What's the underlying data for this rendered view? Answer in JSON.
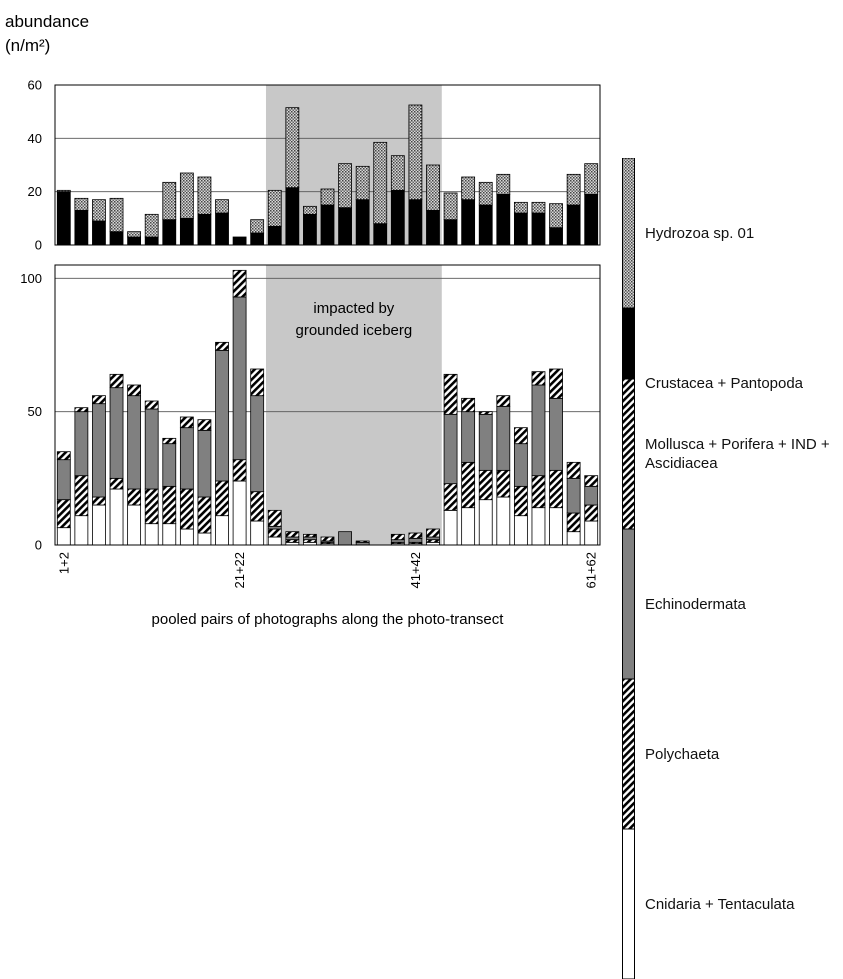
{
  "chart_data": [
    {
      "type": "bar",
      "stacked": true,
      "ylabel_lines": [
        "abundance",
        "(n/m²)"
      ],
      "ylim": [
        0,
        60
      ],
      "yticks": [
        0,
        20,
        40,
        60
      ],
      "grid": true,
      "shaded_range": [
        12,
        21
      ],
      "series": [
        {
          "name": "Crustacea + Pantopoda",
          "color": "#000000",
          "pattern": "solid",
          "values": [
            20,
            13,
            9,
            5,
            3,
            3,
            9.5,
            10,
            11.5,
            12,
            3,
            4.5,
            7,
            21.5,
            11.5,
            15,
            14,
            17,
            8,
            20.5,
            17,
            13,
            9.5,
            17,
            15,
            19,
            12,
            12,
            6.5,
            15,
            19
          ]
        },
        {
          "name": "Hydrozoa sp. 01",
          "color": "#777777",
          "pattern": "dots",
          "values": [
            0.5,
            4.5,
            8,
            12.5,
            2,
            8.5,
            14,
            17,
            14,
            5,
            0,
            5,
            13.5,
            30,
            3,
            6,
            16.5,
            12.5,
            30.5,
            13,
            35.5,
            17,
            10,
            8.5,
            8.5,
            7.5,
            4,
            4,
            9,
            11.5,
            11.5
          ]
        }
      ]
    },
    {
      "type": "bar",
      "stacked": true,
      "ylim": [
        0,
        105
      ],
      "yticks": [
        0,
        50,
        100
      ],
      "grid": true,
      "shaded_range": [
        12,
        21
      ],
      "annotation_lines": [
        "impacted by",
        "grounded iceberg"
      ],
      "xlabel": "pooled pairs of photographs along the photo-transect",
      "categories": [
        "1+2",
        null,
        null,
        null,
        null,
        null,
        null,
        null,
        null,
        null,
        "21+22",
        null,
        null,
        null,
        null,
        null,
        null,
        null,
        null,
        null,
        "41+42",
        null,
        null,
        null,
        null,
        null,
        null,
        null,
        null,
        null,
        "61+62"
      ],
      "series": [
        {
          "name": "Cnidaria + Tentaculata",
          "color": "#ffffff",
          "pattern": "solid",
          "values": [
            6.5,
            11,
            15,
            21,
            15,
            8,
            8,
            6,
            4.5,
            11,
            24,
            9,
            3,
            1,
            1,
            0.5,
            0,
            0,
            0,
            0.5,
            0.5,
            1,
            13,
            14,
            17,
            18,
            11,
            14,
            14,
            5,
            9
          ]
        },
        {
          "name": "Polychaeta",
          "color": "#000000",
          "pattern": "hatch",
          "values": [
            10.5,
            15,
            3,
            4,
            6,
            13,
            14,
            15,
            13.5,
            13,
            8,
            11,
            3,
            1,
            1,
            0.5,
            0,
            0,
            0,
            0.5,
            0.5,
            1,
            10,
            17,
            11,
            10,
            11,
            12,
            14,
            7,
            6
          ]
        },
        {
          "name": "Echinodermata",
          "color": "#808080",
          "pattern": "solid",
          "values": [
            15,
            24,
            35,
            34,
            35,
            30,
            16,
            23,
            25,
            49,
            61,
            36,
            1,
            1,
            1,
            0.5,
            5,
            1,
            0,
            1,
            1.5,
            1,
            26,
            19,
            21,
            24,
            16,
            34,
            27,
            13,
            7
          ]
        },
        {
          "name": "Mollusca + Porifera + IND + Ascidiacea",
          "color": "#000000",
          "pattern": "hatch",
          "values": [
            3,
            1.5,
            3,
            5,
            4,
            3,
            2,
            4,
            4,
            3,
            10,
            10,
            6,
            2,
            1,
            1.5,
            0,
            0.5,
            0,
            2,
            2,
            3,
            15,
            5,
            1,
            4,
            6,
            5,
            11,
            6,
            4
          ]
        }
      ]
    }
  ]
}
